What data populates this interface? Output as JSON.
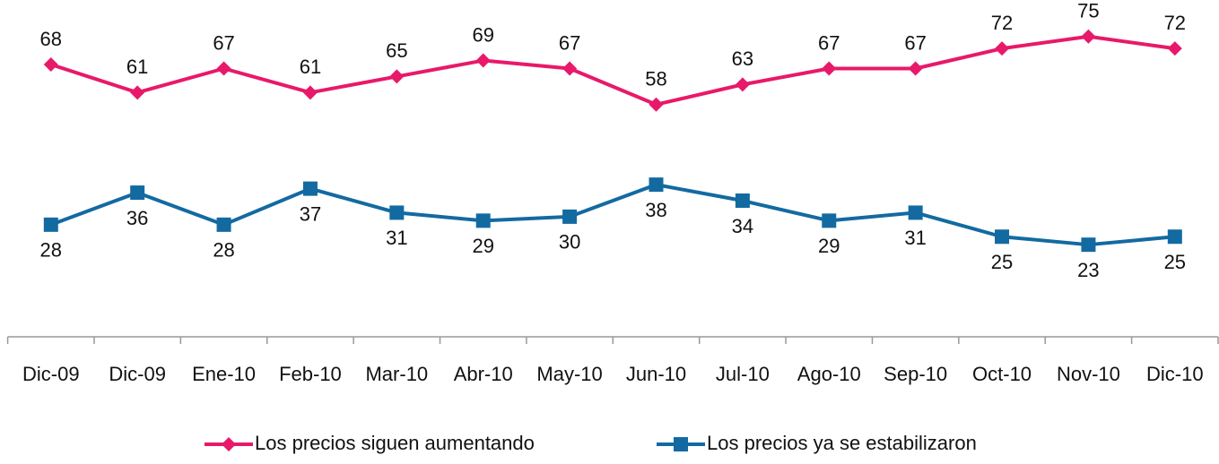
{
  "chart_data": {
    "type": "line",
    "categories": [
      "Dic-09",
      "Dic-09",
      "Ene-10",
      "Feb-10",
      "Mar-10",
      "Abr-10",
      "May-10",
      "Jun-10",
      "Jul-10",
      "Ago-10",
      "Sep-10",
      "Oct-10",
      "Nov-10",
      "Dic-10"
    ],
    "series": [
      {
        "name": "Los precios siguen aumentando",
        "color": "#e8196a",
        "marker": "diamond",
        "label_position": "above",
        "values": [
          68,
          61,
          67,
          61,
          65,
          69,
          67,
          58,
          63,
          67,
          67,
          72,
          75,
          72
        ]
      },
      {
        "name": "Los precios ya se estabilizaron",
        "color": "#136aa1",
        "marker": "square",
        "label_position": "below",
        "values": [
          28,
          36,
          28,
          37,
          31,
          29,
          30,
          38,
          34,
          29,
          31,
          25,
          23,
          25
        ]
      }
    ],
    "ylim": [
      0,
      84
    ],
    "legend": "bottom"
  }
}
